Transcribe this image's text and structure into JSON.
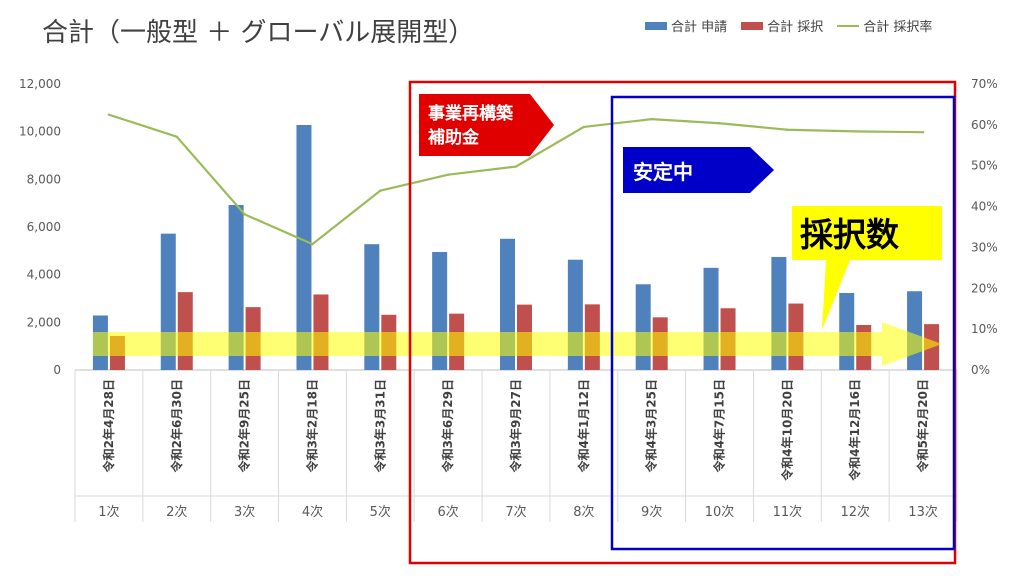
{
  "title": "合計（一般型 ＋ グローバル展開型）",
  "legend": {
    "applications": "合計 申請",
    "adoptions": "合計 採択",
    "rate": "合計 採択率"
  },
  "annotations": {
    "red_box_line1": "事業再構築",
    "red_box_line2": "補助金",
    "blue_box": "安定中",
    "yellow_callout": "採択数"
  },
  "colors": {
    "applications": "#4f81bd",
    "adoptions": "#c0504d",
    "rate": "#9bbb59",
    "red_frame": "#e00000",
    "blue_frame": "#0000c8",
    "yellow": "#ffff00"
  },
  "chart_data": {
    "type": "bar",
    "categories": [
      "令和2年4月28日",
      "令和2年6月30日",
      "令和2年9月25日",
      "令和3年2月18日",
      "令和3年3月31日",
      "令和3年6月29日",
      "令和3年9月27日",
      "令和4年1月12日",
      "令和4年3月25日",
      "令和4年7月15日",
      "令和4年10月20日",
      "令和4年12月16日",
      "令和5年2月20日"
    ],
    "rounds": [
      "1次",
      "2次",
      "3次",
      "4次",
      "5次",
      "6次",
      "7次",
      "8次",
      "9次",
      "10次",
      "11次",
      "12次",
      "13次"
    ],
    "series": [
      {
        "name": "合計 申請",
        "type": "bar",
        "axis": "left",
        "values": [
          2287,
          5721,
          6923,
          10279,
          5279,
          4951,
          5505,
          4627,
          3597,
          4287,
          4744,
          3231,
          3305
        ]
      },
      {
        "name": "合計 採択",
        "type": "bar",
        "axis": "left",
        "values": [
          1429,
          3267,
          2637,
          3169,
          2316,
          2365,
          2743,
          2754,
          2210,
          2591,
          2788,
          1888,
          1925
        ]
      },
      {
        "name": "合計 採択率",
        "type": "line",
        "axis": "right",
        "values": [
          62.5,
          57.1,
          38.1,
          30.8,
          43.9,
          47.8,
          49.8,
          59.5,
          61.4,
          60.4,
          58.8,
          58.4,
          58.2
        ]
      }
    ],
    "ylim": [
      0,
      12000
    ],
    "yticks": [
      "0",
      "2,000",
      "4,000",
      "6,000",
      "8,000",
      "10,000",
      "12,000"
    ],
    "y2lim": [
      0,
      70
    ],
    "y2ticks": [
      "0%",
      "10%",
      "20%",
      "30%",
      "40%",
      "50%",
      "60%",
      "70%"
    ],
    "xlabel": "",
    "ylabel": "",
    "grid": false,
    "legend_position": "top-right"
  }
}
